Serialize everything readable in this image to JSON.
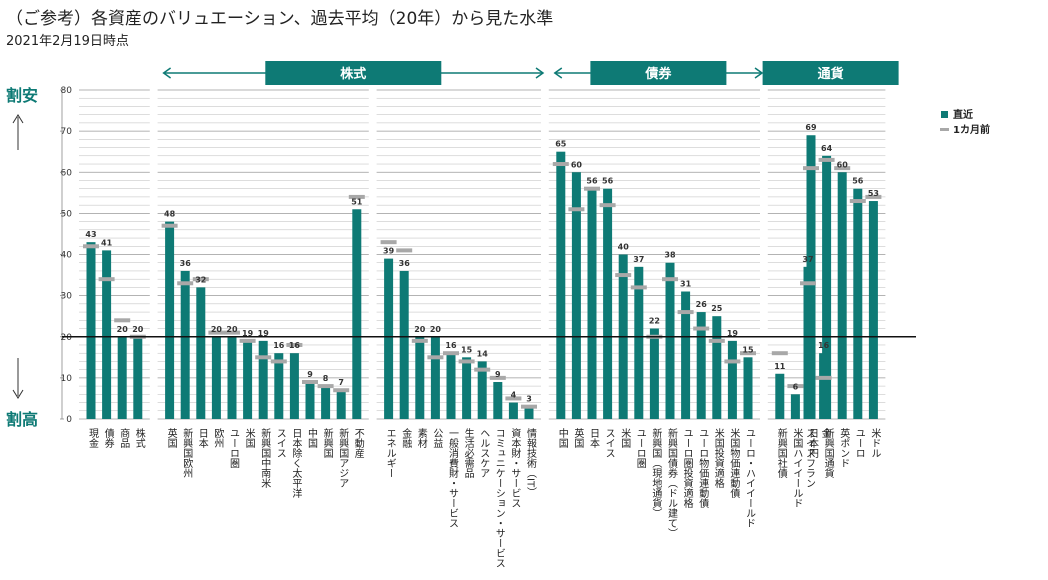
{
  "header": {
    "title": "（ご参考）各資産のバリュエーション、過去平均（20年）から見た水準",
    "subtitle": "2021年2月19日時点"
  },
  "side_labels": {
    "top": "割安",
    "bottom": "割高"
  },
  "colors": {
    "bar": "#0e7a75",
    "marker": "#a8a8a8",
    "baseline": "#111111",
    "grid": "#bbbbbb",
    "band": "#0e7a75"
  },
  "chart_data": {
    "type": "bar",
    "ylim": [
      0,
      80
    ],
    "yticks": [
      0,
      10,
      20,
      30,
      40,
      50,
      60,
      70,
      80
    ],
    "reference_line": 20,
    "grid": true,
    "legend": {
      "position": "top-right",
      "items": [
        {
          "label": "直近",
          "kind": "bar"
        },
        {
          "label": "1カ月前",
          "kind": "marker"
        }
      ]
    },
    "groups": [
      {
        "label": "",
        "from": 0,
        "to": 3
      },
      {
        "label": "株式",
        "from": 4,
        "to": 16
      },
      {
        "label": "",
        "from": 17,
        "to": 26
      },
      {
        "label": "債券",
        "from": 27,
        "to": 39
      },
      {
        "label": "通貨",
        "from": 40,
        "to": 46
      }
    ],
    "bands": [
      {
        "label": "株式",
        "from": 4,
        "to": 26
      },
      {
        "label": "債券",
        "from": 27,
        "to": 39
      },
      {
        "label": "通貨",
        "from": 40,
        "to": 46
      }
    ],
    "categories": [
      "現金",
      "債券",
      "商品",
      "株式",
      "英国",
      "新興国欧州",
      "日本",
      "欧州",
      "ユーロ圏",
      "米国",
      "新興国中南米",
      "スイス",
      "日本除く太平洋",
      "中国",
      "新興国",
      "新興国アジア",
      "不動産",
      "エネルギー",
      "金融",
      "素材",
      "公益",
      "一般消費財・サービス",
      "生活必需品",
      "ヘルスケア",
      "コミュニケーション・サービス",
      "資本財・サービス",
      "情報技術（IT）",
      "中国",
      "英国",
      "日本",
      "スイス",
      "米国",
      "ユーロ圏",
      "新興国（現地通貨）",
      "新興国債券（ドル建て）",
      "ユーロ圏投資適格",
      "ユーロ物価連動債",
      "米国投資適格",
      "米国物価連動債",
      "ユーロ・ハイイールド",
      "新興国社債",
      "米国ハイイールド",
      "日本円",
      "新興国通貨",
      "英ポンド",
      "ユーロ",
      "米ドル",
      "スイスフラン",
      "金"
    ],
    "series": [
      {
        "name": "直近",
        "values": [
          43,
          41,
          20,
          20,
          48,
          36,
          32,
          20,
          20,
          19,
          19,
          16,
          16,
          9,
          8,
          7,
          51,
          39,
          36,
          20,
          20,
          16,
          15,
          14,
          9,
          4,
          3,
          65,
          60,
          56,
          56,
          40,
          37,
          22,
          38,
          31,
          26,
          25,
          19,
          15,
          11,
          6,
          69,
          64,
          60,
          56,
          53,
          37,
          16
        ]
      },
      {
        "name": "1カ月前",
        "values": [
          42,
          34,
          24,
          20,
          47,
          33,
          34,
          21,
          21,
          19,
          15,
          14,
          18,
          9,
          8,
          7,
          54,
          43,
          41,
          19,
          15,
          16,
          14,
          12,
          10,
          5,
          3,
          62,
          51,
          56,
          52,
          35,
          32,
          20,
          34,
          26,
          22,
          19,
          14,
          16,
          16,
          8,
          61,
          63,
          61,
          53,
          54,
          33,
          10
        ]
      }
    ]
  }
}
